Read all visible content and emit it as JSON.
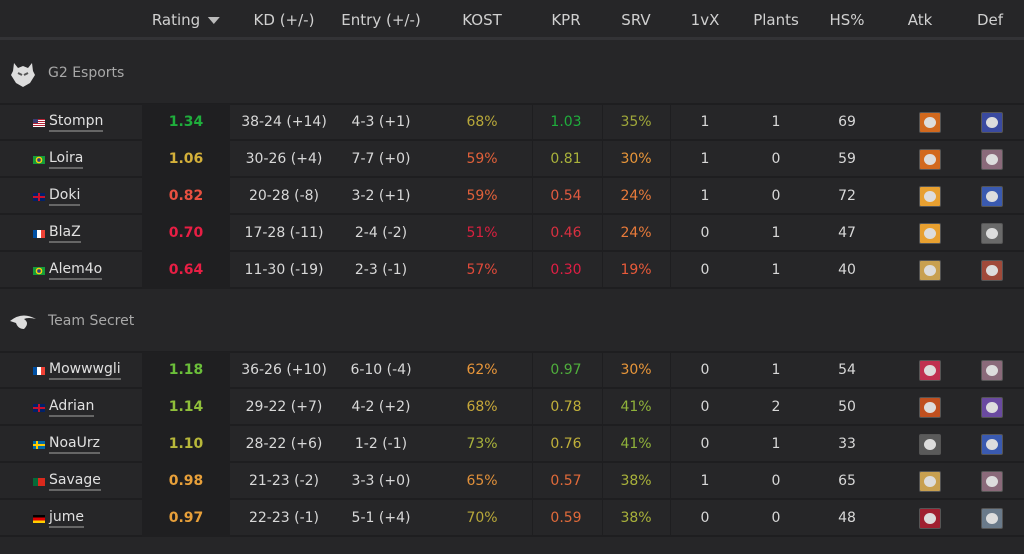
{
  "columns": [
    "Rating",
    "KD (+/-)",
    "Entry (+/-)",
    "KOST",
    "KPR",
    "SRV",
    "1vX",
    "Plants",
    "HS%",
    "Atk",
    "Def"
  ],
  "sort": {
    "column": "Rating",
    "icon": "caret-down-icon"
  },
  "colors": {
    "bg": "#262628",
    "rating_bg": "#1f1f21"
  },
  "teams": [
    {
      "name": "G2 Esports",
      "logo": "g2-logo",
      "players": [
        {
          "flag": "us",
          "name": "Stompn",
          "rating": "1.34",
          "rc": "#1fae3c",
          "kd": "38-24 (+14)",
          "entry": "4-3 (+1)",
          "kost": "68%",
          "kc": "#b8a83a",
          "kpr": "1.03",
          "pc": "#1fae3c",
          "srv": "35%",
          "sc": "#a0a83a",
          "onevx": "1",
          "plants": "1",
          "hs": "69",
          "atk": "#d2691e",
          "def": "#3a4aa0"
        },
        {
          "flag": "br",
          "name": "Loira",
          "rating": "1.06",
          "rc": "#d4b03a",
          "kd": "30-26 (+4)",
          "entry": "7-7 (+0)",
          "kost": "59%",
          "kc": "#e0603a",
          "kpr": "0.81",
          "pc": "#a9b23b",
          "srv": "30%",
          "sc": "#e8963a",
          "onevx": "1",
          "plants": "0",
          "hs": "59",
          "atk": "#d2691e",
          "def": "#8a6a7a"
        },
        {
          "flag": "gb",
          "name": "Doki",
          "rating": "0.82",
          "rc": "#e85040",
          "kd": "20-28 (-8)",
          "entry": "3-2 (+1)",
          "kost": "59%",
          "kc": "#e0603a",
          "kpr": "0.54",
          "pc": "#e05a40",
          "srv": "24%",
          "sc": "#e87a3a",
          "onevx": "1",
          "plants": "0",
          "hs": "72",
          "atk": "#e8a030",
          "def": "#3a5ab0"
        },
        {
          "flag": "fr",
          "name": "BlaZ",
          "rating": "0.70",
          "rc": "#e81e44",
          "kd": "17-28 (-11)",
          "entry": "2-4 (-2)",
          "kost": "51%",
          "kc": "#d8203f",
          "kpr": "0.46",
          "pc": "#d83040",
          "srv": "24%",
          "sc": "#e87a3a",
          "onevx": "0",
          "plants": "1",
          "hs": "47",
          "atk": "#e8a030",
          "def": "#6a6a6a"
        },
        {
          "flag": "br",
          "name": "Alem4o",
          "rating": "0.64",
          "rc": "#e81e44",
          "kd": "11-30 (-19)",
          "entry": "2-3 (-1)",
          "kost": "57%",
          "kc": "#e04a3a",
          "kpr": "0.30",
          "pc": "#e01e44",
          "srv": "19%",
          "sc": "#e85a3a",
          "onevx": "0",
          "plants": "1",
          "hs": "40",
          "atk": "#c8a050",
          "def": "#a04a3a"
        }
      ]
    },
    {
      "name": "Team Secret",
      "logo": "team-secret-logo",
      "players": [
        {
          "flag": "fr",
          "name": "Mowwwgli",
          "rating": "1.18",
          "rc": "#6bbf3a",
          "kd": "36-26 (+10)",
          "entry": "6-10 (-4)",
          "kost": "62%",
          "kc": "#e8963a",
          "kpr": "0.97",
          "pc": "#4fae3c",
          "srv": "30%",
          "sc": "#e8963a",
          "onevx": "0",
          "plants": "1",
          "hs": "54",
          "atk": "#c03050",
          "def": "#8a6a7a"
        },
        {
          "flag": "gb",
          "name": "Adrian",
          "rating": "1.14",
          "rc": "#8fbf3a",
          "kd": "29-22 (+7)",
          "entry": "4-2 (+2)",
          "kost": "68%",
          "kc": "#c7a83a",
          "kpr": "0.78",
          "pc": "#c0b03a",
          "srv": "41%",
          "sc": "#8fb23a",
          "onevx": "0",
          "plants": "2",
          "hs": "50",
          "atk": "#c05020",
          "def": "#6a4aa0"
        },
        {
          "flag": "se",
          "name": "NoaUrz",
          "rating": "1.10",
          "rc": "#b8b83a",
          "kd": "28-22 (+6)",
          "entry": "1-2 (-1)",
          "kost": "73%",
          "kc": "#a9b23b",
          "kpr": "0.76",
          "pc": "#c0b03a",
          "srv": "41%",
          "sc": "#8fb23a",
          "onevx": "0",
          "plants": "1",
          "hs": "33",
          "atk": "#5a5a5a",
          "def": "#3a5ab0"
        },
        {
          "flag": "pt",
          "name": "Savage",
          "rating": "0.98",
          "rc": "#e8a03a",
          "kd": "21-23 (-2)",
          "entry": "3-3 (+0)",
          "kost": "65%",
          "kc": "#e0903a",
          "kpr": "0.57",
          "pc": "#e06a3a",
          "srv": "38%",
          "sc": "#a9b23b",
          "onevx": "1",
          "plants": "0",
          "hs": "65",
          "atk": "#c8a050",
          "def": "#8a6a7a"
        },
        {
          "flag": "de",
          "name": "jume",
          "rating": "0.97",
          "rc": "#e8a03a",
          "kd": "22-23 (-1)",
          "entry": "5-1 (+4)",
          "kost": "70%",
          "kc": "#b8a83a",
          "kpr": "0.59",
          "pc": "#e06a3a",
          "srv": "38%",
          "sc": "#a9b23b",
          "onevx": "0",
          "plants": "0",
          "hs": "48",
          "atk": "#a02030",
          "def": "#6a7a8a"
        }
      ]
    }
  ]
}
